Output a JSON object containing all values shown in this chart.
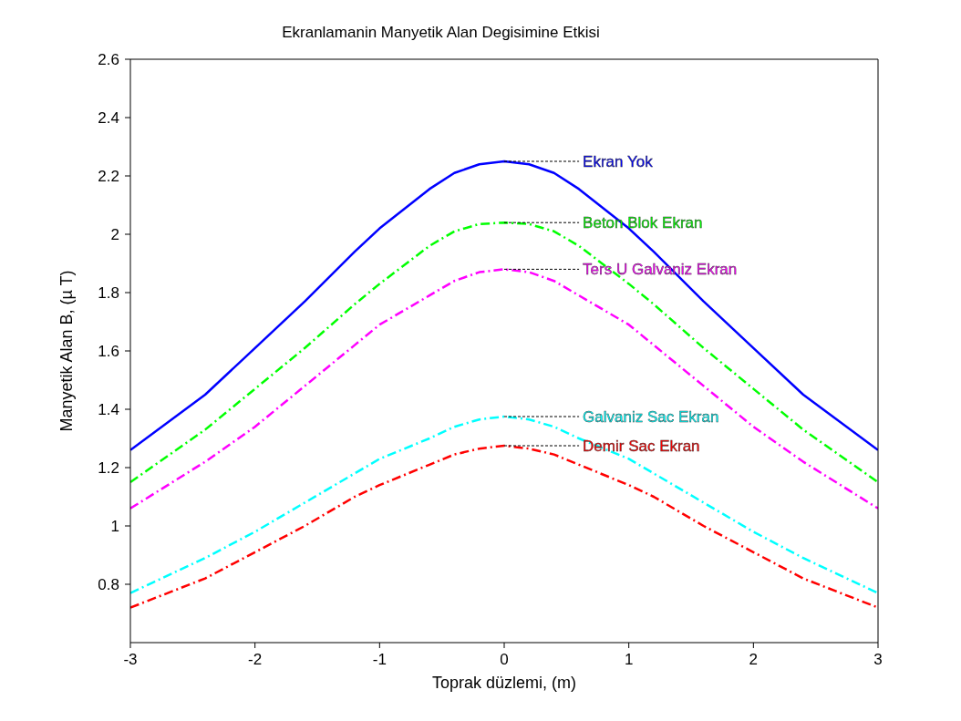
{
  "chart_data": {
    "type": "line",
    "title": "Ekranlamanin Manyetik Alan Degisimine Etkisi",
    "xlabel": "Toprak düzlemi, (m)",
    "ylabel": "Manyetik Alan B, (µ T)",
    "x": [
      -3,
      -2.4,
      -2,
      -1.6,
      -1.2,
      -1,
      -0.6,
      -0.4,
      -0.2,
      0,
      0.2,
      0.4,
      0.6,
      1,
      1.2,
      1.6,
      2,
      2.4,
      3
    ],
    "series": [
      {
        "name": "Ekran Yok",
        "color": "#0000ff",
        "line_style": "solid",
        "values": [
          1.26,
          1.45,
          1.61,
          1.77,
          1.94,
          2.02,
          2.155,
          2.21,
          2.24,
          2.25,
          2.24,
          2.21,
          2.155,
          2.02,
          1.94,
          1.77,
          1.61,
          1.45,
          1.26
        ]
      },
      {
        "name": "Beton Blok Ekran",
        "color": "#00ff00",
        "line_style": "dashed",
        "values": [
          1.15,
          1.33,
          1.47,
          1.61,
          1.76,
          1.83,
          1.96,
          2.01,
          2.035,
          2.04,
          2.035,
          2.01,
          1.96,
          1.83,
          1.76,
          1.61,
          1.47,
          1.33,
          1.15
        ]
      },
      {
        "name": "Ters U Galvaniz Ekran",
        "color": "#ff00ff",
        "line_style": "dashed",
        "values": [
          1.06,
          1.22,
          1.34,
          1.48,
          1.62,
          1.69,
          1.79,
          1.84,
          1.87,
          1.88,
          1.87,
          1.84,
          1.79,
          1.69,
          1.62,
          1.48,
          1.34,
          1.22,
          1.06
        ]
      },
      {
        "name": "Galvaniz Sac Ekran",
        "color": "#00ffff",
        "line_style": "dashed",
        "values": [
          0.77,
          0.89,
          0.98,
          1.08,
          1.18,
          1.23,
          1.3,
          1.34,
          1.365,
          1.375,
          1.365,
          1.34,
          1.3,
          1.23,
          1.18,
          1.08,
          0.98,
          0.89,
          0.77
        ]
      },
      {
        "name": "Demir Sac Ekran",
        "color": "#ff0000",
        "line_style": "dashed",
        "values": [
          0.72,
          0.82,
          0.91,
          1.0,
          1.1,
          1.14,
          1.21,
          1.245,
          1.265,
          1.275,
          1.265,
          1.245,
          1.21,
          1.14,
          1.1,
          1.0,
          0.91,
          0.82,
          0.72
        ]
      }
    ],
    "xlim": [
      -3,
      3
    ],
    "xticks": [
      -3,
      -2,
      -1,
      0,
      1,
      2,
      3
    ],
    "ylim": [
      0.6,
      2.6
    ],
    "yticks": [
      0.8,
      1,
      1.2,
      1.4,
      1.6,
      1.8,
      2,
      2.2,
      2.4,
      2.6
    ],
    "marker": "none"
  }
}
